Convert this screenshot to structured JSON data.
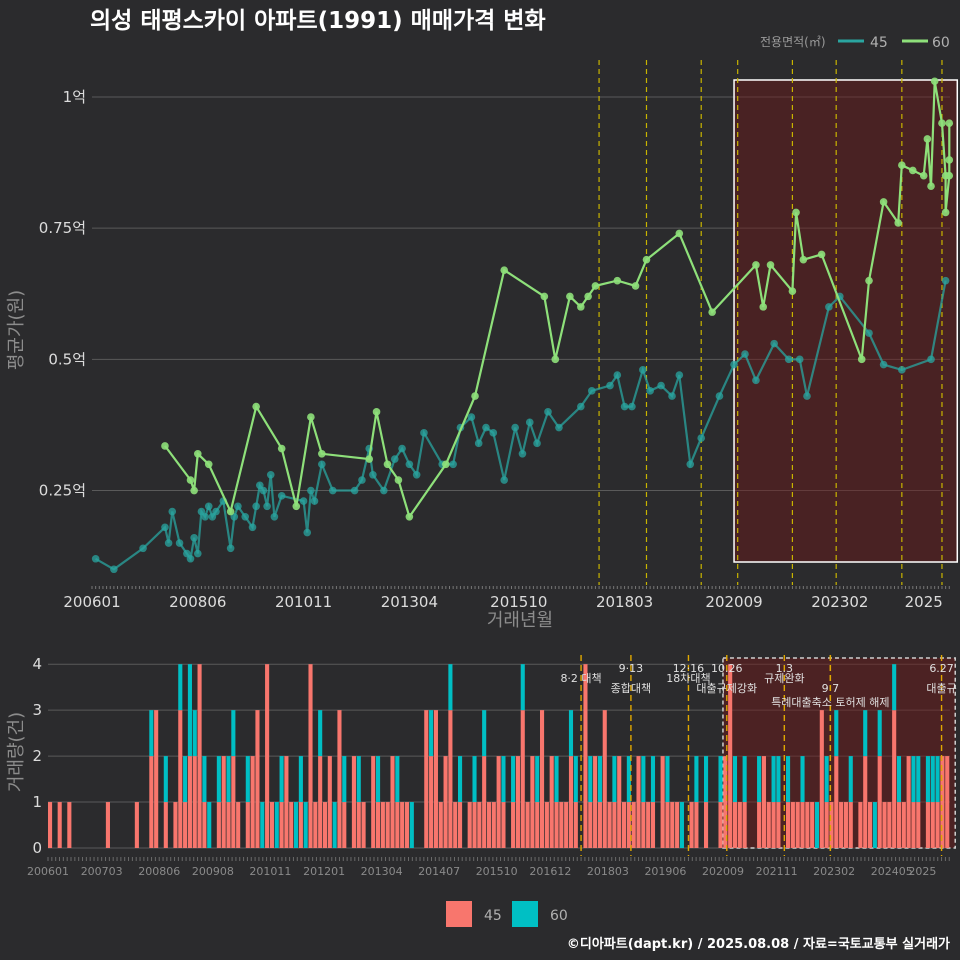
{
  "chart_data": [
    {
      "type": "line",
      "title": "의성 태평스카이 아파트(1991) 매매가격 변화",
      "xlabel": "거래년월",
      "ylabel": "평균가(원)",
      "x_ticks": [
        "200601",
        "200806",
        "201011",
        "201304",
        "201510",
        "201803",
        "202009",
        "202302",
        "2025"
      ],
      "y_ticks": [
        {
          "value": 0.25,
          "label": "0.25억"
        },
        {
          "value": 0.5,
          "label": "0.5억"
        },
        {
          "value": 0.75,
          "label": "0.75억"
        },
        {
          "value": 1.0,
          "label": "1억"
        }
      ],
      "ylim": [
        0.07,
        1.08
      ],
      "grid": true,
      "legend": {
        "title": "전용면적(㎡)",
        "placement": "top-right"
      },
      "highlight_period": [
        "2020-09",
        "2025-08"
      ],
      "policy_dates": [
        "2017-08",
        "2018-09",
        "2019-12",
        "2020-10",
        "2022-01",
        "2023-01",
        "2024-07",
        "2025-06"
      ],
      "series": [
        {
          "name": "45",
          "color": "#2aa5a0",
          "points": [
            [
              "2006-02",
              0.12
            ],
            [
              "2006-07",
              0.1
            ],
            [
              "2007-03",
              0.14
            ],
            [
              "2007-09",
              0.18
            ],
            [
              "2007-10",
              0.15
            ],
            [
              "2007-11",
              0.21
            ],
            [
              "2008-01",
              0.15
            ],
            [
              "2008-03",
              0.13
            ],
            [
              "2008-04",
              0.12
            ],
            [
              "2008-05",
              0.16
            ],
            [
              "2008-06",
              0.13
            ],
            [
              "2008-07",
              0.21
            ],
            [
              "2008-08",
              0.2
            ],
            [
              "2008-09",
              0.22
            ],
            [
              "2008-10",
              0.2
            ],
            [
              "2008-11",
              0.21
            ],
            [
              "2009-01",
              0.23
            ],
            [
              "2009-03",
              0.14
            ],
            [
              "2009-04",
              0.2
            ],
            [
              "2009-05",
              0.22
            ],
            [
              "2009-07",
              0.2
            ],
            [
              "2009-09",
              0.18
            ],
            [
              "2009-10",
              0.22
            ],
            [
              "2009-11",
              0.26
            ],
            [
              "2009-12",
              0.25
            ],
            [
              "2010-01",
              0.22
            ],
            [
              "2010-02",
              0.28
            ],
            [
              "2010-03",
              0.2
            ],
            [
              "2010-05",
              0.24
            ],
            [
              "2010-11",
              0.23
            ],
            [
              "2010-12",
              0.17
            ],
            [
              "2011-01",
              0.25
            ],
            [
              "2011-02",
              0.23
            ],
            [
              "2011-04",
              0.3
            ],
            [
              "2011-07",
              0.25
            ],
            [
              "2012-01",
              0.25
            ],
            [
              "2012-03",
              0.27
            ],
            [
              "2012-05",
              0.33
            ],
            [
              "2012-06",
              0.28
            ],
            [
              "2012-09",
              0.25
            ],
            [
              "2012-12",
              0.31
            ],
            [
              "2013-02",
              0.33
            ],
            [
              "2013-04",
              0.3
            ],
            [
              "2013-06",
              0.28
            ],
            [
              "2013-08",
              0.36
            ],
            [
              "2014-01",
              0.3
            ],
            [
              "2014-04",
              0.3
            ],
            [
              "2014-06",
              0.37
            ],
            [
              "2014-09",
              0.39
            ],
            [
              "2014-11",
              0.34
            ],
            [
              "2015-01",
              0.37
            ],
            [
              "2015-03",
              0.36
            ],
            [
              "2015-06",
              0.27
            ],
            [
              "2015-09",
              0.37
            ],
            [
              "2015-11",
              0.32
            ],
            [
              "2016-01",
              0.38
            ],
            [
              "2016-03",
              0.34
            ],
            [
              "2016-06",
              0.4
            ],
            [
              "2016-09",
              0.37
            ],
            [
              "2017-03",
              0.41
            ],
            [
              "2017-06",
              0.44
            ],
            [
              "2017-11",
              0.45
            ],
            [
              "2018-01",
              0.47
            ],
            [
              "2018-03",
              0.41
            ],
            [
              "2018-05",
              0.41
            ],
            [
              "2018-08",
              0.48
            ],
            [
              "2018-10",
              0.44
            ],
            [
              "2019-01",
              0.45
            ],
            [
              "2019-04",
              0.43
            ],
            [
              "2019-06",
              0.47
            ],
            [
              "2019-09",
              0.3
            ],
            [
              "2019-12",
              0.35
            ],
            [
              "2020-05",
              0.43
            ],
            [
              "2020-09",
              0.49
            ],
            [
              "2020-12",
              0.51
            ],
            [
              "2021-03",
              0.46
            ],
            [
              "2021-08",
              0.53
            ],
            [
              "2021-12",
              0.5
            ],
            [
              "2022-03",
              0.5
            ],
            [
              "2022-05",
              0.43
            ],
            [
              "2022-11",
              0.6
            ],
            [
              "2023-02",
              0.62
            ],
            [
              "2023-10",
              0.55
            ],
            [
              "2024-02",
              0.49
            ],
            [
              "2024-07",
              0.48
            ],
            [
              "2025-03",
              0.5
            ],
            [
              "2025-07",
              0.65
            ]
          ]
        },
        {
          "name": "60",
          "color": "#8ee07a",
          "points": [
            [
              "2007-09",
              0.335
            ],
            [
              "2008-04",
              0.27
            ],
            [
              "2008-05",
              0.25
            ],
            [
              "2008-06",
              0.32
            ],
            [
              "2008-09",
              0.3
            ],
            [
              "2009-03",
              0.21
            ],
            [
              "2009-10",
              0.41
            ],
            [
              "2010-05",
              0.33
            ],
            [
              "2010-09",
              0.22
            ],
            [
              "2011-01",
              0.39
            ],
            [
              "2011-04",
              0.32
            ],
            [
              "2012-05",
              0.31
            ],
            [
              "2012-07",
              0.4
            ],
            [
              "2012-10",
              0.3
            ],
            [
              "2013-01",
              0.27
            ],
            [
              "2013-04",
              0.2
            ],
            [
              "2014-02",
              0.3
            ],
            [
              "2014-10",
              0.43
            ],
            [
              "2015-06",
              0.67
            ],
            [
              "2016-05",
              0.62
            ],
            [
              "2016-08",
              0.5
            ],
            [
              "2016-12",
              0.62
            ],
            [
              "2017-03",
              0.6
            ],
            [
              "2017-05",
              0.62
            ],
            [
              "2017-07",
              0.64
            ],
            [
              "2018-01",
              0.65
            ],
            [
              "2018-06",
              0.64
            ],
            [
              "2018-09",
              0.69
            ],
            [
              "2019-06",
              0.74
            ],
            [
              "2020-03",
              0.59
            ],
            [
              "2021-03",
              0.68
            ],
            [
              "2021-05",
              0.6
            ],
            [
              "2021-07",
              0.68
            ],
            [
              "2022-01",
              0.63
            ],
            [
              "2022-02",
              0.78
            ],
            [
              "2022-04",
              0.69
            ],
            [
              "2022-09",
              0.7
            ],
            [
              "2023-08",
              0.5
            ],
            [
              "2023-10",
              0.65
            ],
            [
              "2024-02",
              0.8
            ],
            [
              "2024-06",
              0.76
            ],
            [
              "2024-07",
              0.87
            ],
            [
              "2024-10",
              0.86
            ],
            [
              "2025-01",
              0.85
            ],
            [
              "2025-02",
              0.92
            ],
            [
              "2025-03",
              0.83
            ],
            [
              "2025-04",
              1.03
            ],
            [
              "2025-06",
              0.95
            ],
            [
              "2025-07",
              0.85
            ],
            [
              "2025-07",
              0.78
            ],
            [
              "2025-08",
              0.85
            ],
            [
              "2025-08",
              0.88
            ],
            [
              "2025-08",
              0.95
            ]
          ]
        }
      ]
    },
    {
      "type": "bar",
      "title": "",
      "xlabel": "",
      "ylabel": "거래량(건)",
      "x_ticks": [
        "200601",
        "200703",
        "200806",
        "200908",
        "201011",
        "201201",
        "201304",
        "201407",
        "201510",
        "201612",
        "201803",
        "201906",
        "202009",
        "202111",
        "202302",
        "202405",
        "2025"
      ],
      "y_ticks": [
        0,
        1,
        2,
        3,
        4
      ],
      "ylim": [
        0,
        4.2
      ],
      "stacked": true,
      "legend": {
        "placement": "bottom"
      },
      "highlight_period": [
        "2020-09",
        "2025-08"
      ],
      "series": [
        {
          "name": "45",
          "color": "#f8766d",
          "values": [
            1,
            0,
            1,
            0,
            1,
            0,
            0,
            0,
            0,
            0,
            0,
            0,
            1,
            0,
            0,
            0,
            0,
            0,
            1,
            0,
            0,
            2,
            3,
            0,
            1,
            0,
            1,
            3,
            1,
            2,
            2,
            4,
            1,
            0,
            0,
            1,
            2,
            1,
            2,
            1,
            0,
            1,
            2,
            3,
            0,
            4,
            1,
            0,
            1,
            2,
            1,
            0,
            1,
            0,
            4,
            1,
            2,
            1,
            2,
            0,
            3,
            1,
            0,
            2,
            1,
            1,
            0,
            2,
            1,
            1,
            1,
            2,
            1,
            1,
            1,
            0,
            0,
            0,
            3,
            2,
            3,
            1,
            2,
            3,
            1,
            1,
            0,
            1,
            1,
            1,
            2,
            1,
            1,
            2,
            1,
            0,
            1,
            2,
            3,
            1,
            2,
            1,
            3,
            1,
            2,
            1,
            1,
            1,
            2,
            1,
            0,
            4,
            1,
            2,
            1,
            3,
            1,
            1,
            2,
            1,
            1,
            1,
            2,
            1,
            1,
            1,
            0,
            2,
            1,
            1,
            1,
            0,
            0,
            1,
            1,
            0,
            1,
            0,
            0,
            1,
            2,
            4,
            1,
            1,
            1,
            0,
            0,
            1,
            2,
            1,
            1,
            1,
            0,
            1,
            1,
            1,
            1,
            1,
            1,
            0,
            3,
            1,
            1,
            2,
            1,
            1,
            1,
            0,
            1,
            2,
            1,
            0,
            2,
            1,
            1,
            3,
            1,
            1,
            2,
            1,
            1,
            0,
            1,
            1,
            1,
            2,
            2
          ]
        },
        {
          "name": "60",
          "color": "#00bfc4",
          "values": [
            0,
            0,
            0,
            0,
            0,
            0,
            0,
            0,
            0,
            0,
            0,
            0,
            0,
            0,
            0,
            0,
            0,
            0,
            0,
            0,
            0,
            1,
            0,
            0,
            1,
            0,
            0,
            1,
            1,
            2,
            1,
            0,
            1,
            1,
            0,
            1,
            0,
            1,
            1,
            0,
            0,
            1,
            0,
            0,
            1,
            0,
            0,
            1,
            1,
            0,
            0,
            1,
            1,
            1,
            0,
            0,
            1,
            0,
            0,
            1,
            0,
            1,
            0,
            0,
            1,
            0,
            0,
            0,
            1,
            0,
            0,
            0,
            1,
            0,
            0,
            1,
            0,
            0,
            0,
            1,
            0,
            0,
            0,
            1,
            0,
            1,
            0,
            0,
            1,
            0,
            1,
            0,
            0,
            0,
            1,
            0,
            1,
            0,
            1,
            0,
            0,
            1,
            0,
            0,
            0,
            1,
            0,
            0,
            1,
            1,
            0,
            0,
            1,
            0,
            1,
            0,
            0,
            1,
            0,
            0,
            1,
            0,
            0,
            1,
            0,
            1,
            0,
            0,
            1,
            0,
            0,
            1,
            0,
            0,
            1,
            0,
            1,
            0,
            0,
            1,
            0,
            0,
            1,
            0,
            1,
            0,
            0,
            1,
            0,
            0,
            1,
            1,
            0,
            1,
            0,
            0,
            1,
            0,
            0,
            1,
            0,
            1,
            0,
            1,
            0,
            0,
            1,
            0,
            0,
            1,
            0,
            1,
            1,
            0,
            0,
            1,
            1,
            0,
            0,
            1,
            1,
            0,
            1,
            1,
            1,
            0,
            0,
            1,
            0,
            1,
            1,
            1,
            1
          ]
        }
      ],
      "policies": [
        {
          "date": "2017-08",
          "label_top": "",
          "label": "8·2 대책"
        },
        {
          "date": "2018-09",
          "label_top": "9·13",
          "label": "종합대책"
        },
        {
          "date": "2019-12",
          "label_top": "12·16",
          "label": "18차대책"
        },
        {
          "date": "2020-10",
          "label_top": "10.26",
          "label": "대출규제강화"
        },
        {
          "date": "2022-01",
          "label_top": "1.3",
          "label": "규제완화"
        },
        {
          "date": "2023-01",
          "label_top": "",
          "label": "9·7"
        },
        {
          "date": "2023-01",
          "label_top": "",
          "label": "특례대출축소 토허제 해제"
        },
        {
          "date": "2025-06",
          "label_top": "6.27",
          "label": "대출규"
        }
      ]
    }
  ],
  "footer": {
    "credit": "©디아파트(dapt.kr) / 2025.08.08 / 자료=국토교통부 실거래가"
  },
  "legend_bottom": {
    "item_45": "45",
    "item_60": "60"
  }
}
